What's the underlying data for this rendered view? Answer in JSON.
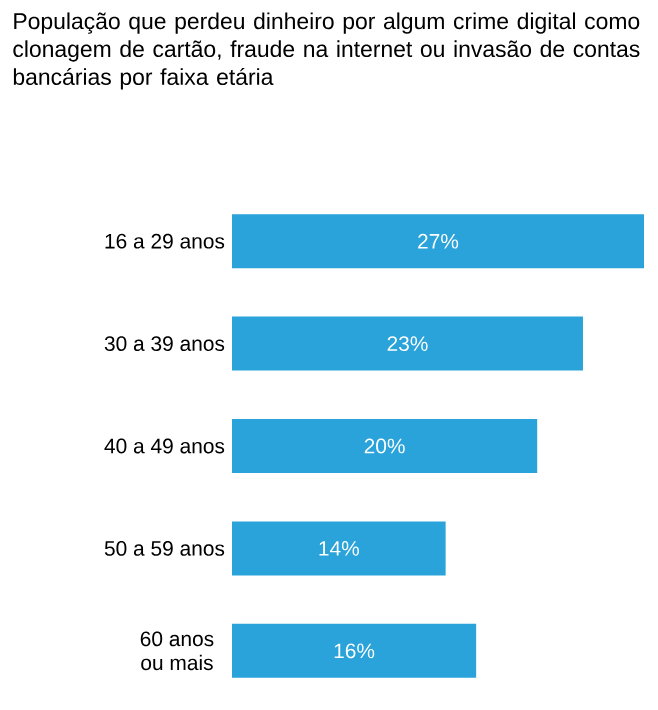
{
  "chart_data": {
    "type": "bar",
    "orientation": "horizontal",
    "title": "População que perdeu dinheiro por algum crime digital como clonagem de cartão, fraude na internet ou invasão de contas bancárias por faixa etária",
    "categories": [
      "16 a 29 anos",
      "30 a 39 anos",
      "40 a 49 anos",
      "50 a 59 anos",
      "60 anos ou mais"
    ],
    "values": [
      27,
      23,
      20,
      14,
      16
    ],
    "value_labels": [
      "27%",
      "23%",
      "20%",
      "14%",
      "16%"
    ],
    "color": "#29a3d9",
    "xlim": [
      0,
      27
    ],
    "tick_labels": "y"
  }
}
